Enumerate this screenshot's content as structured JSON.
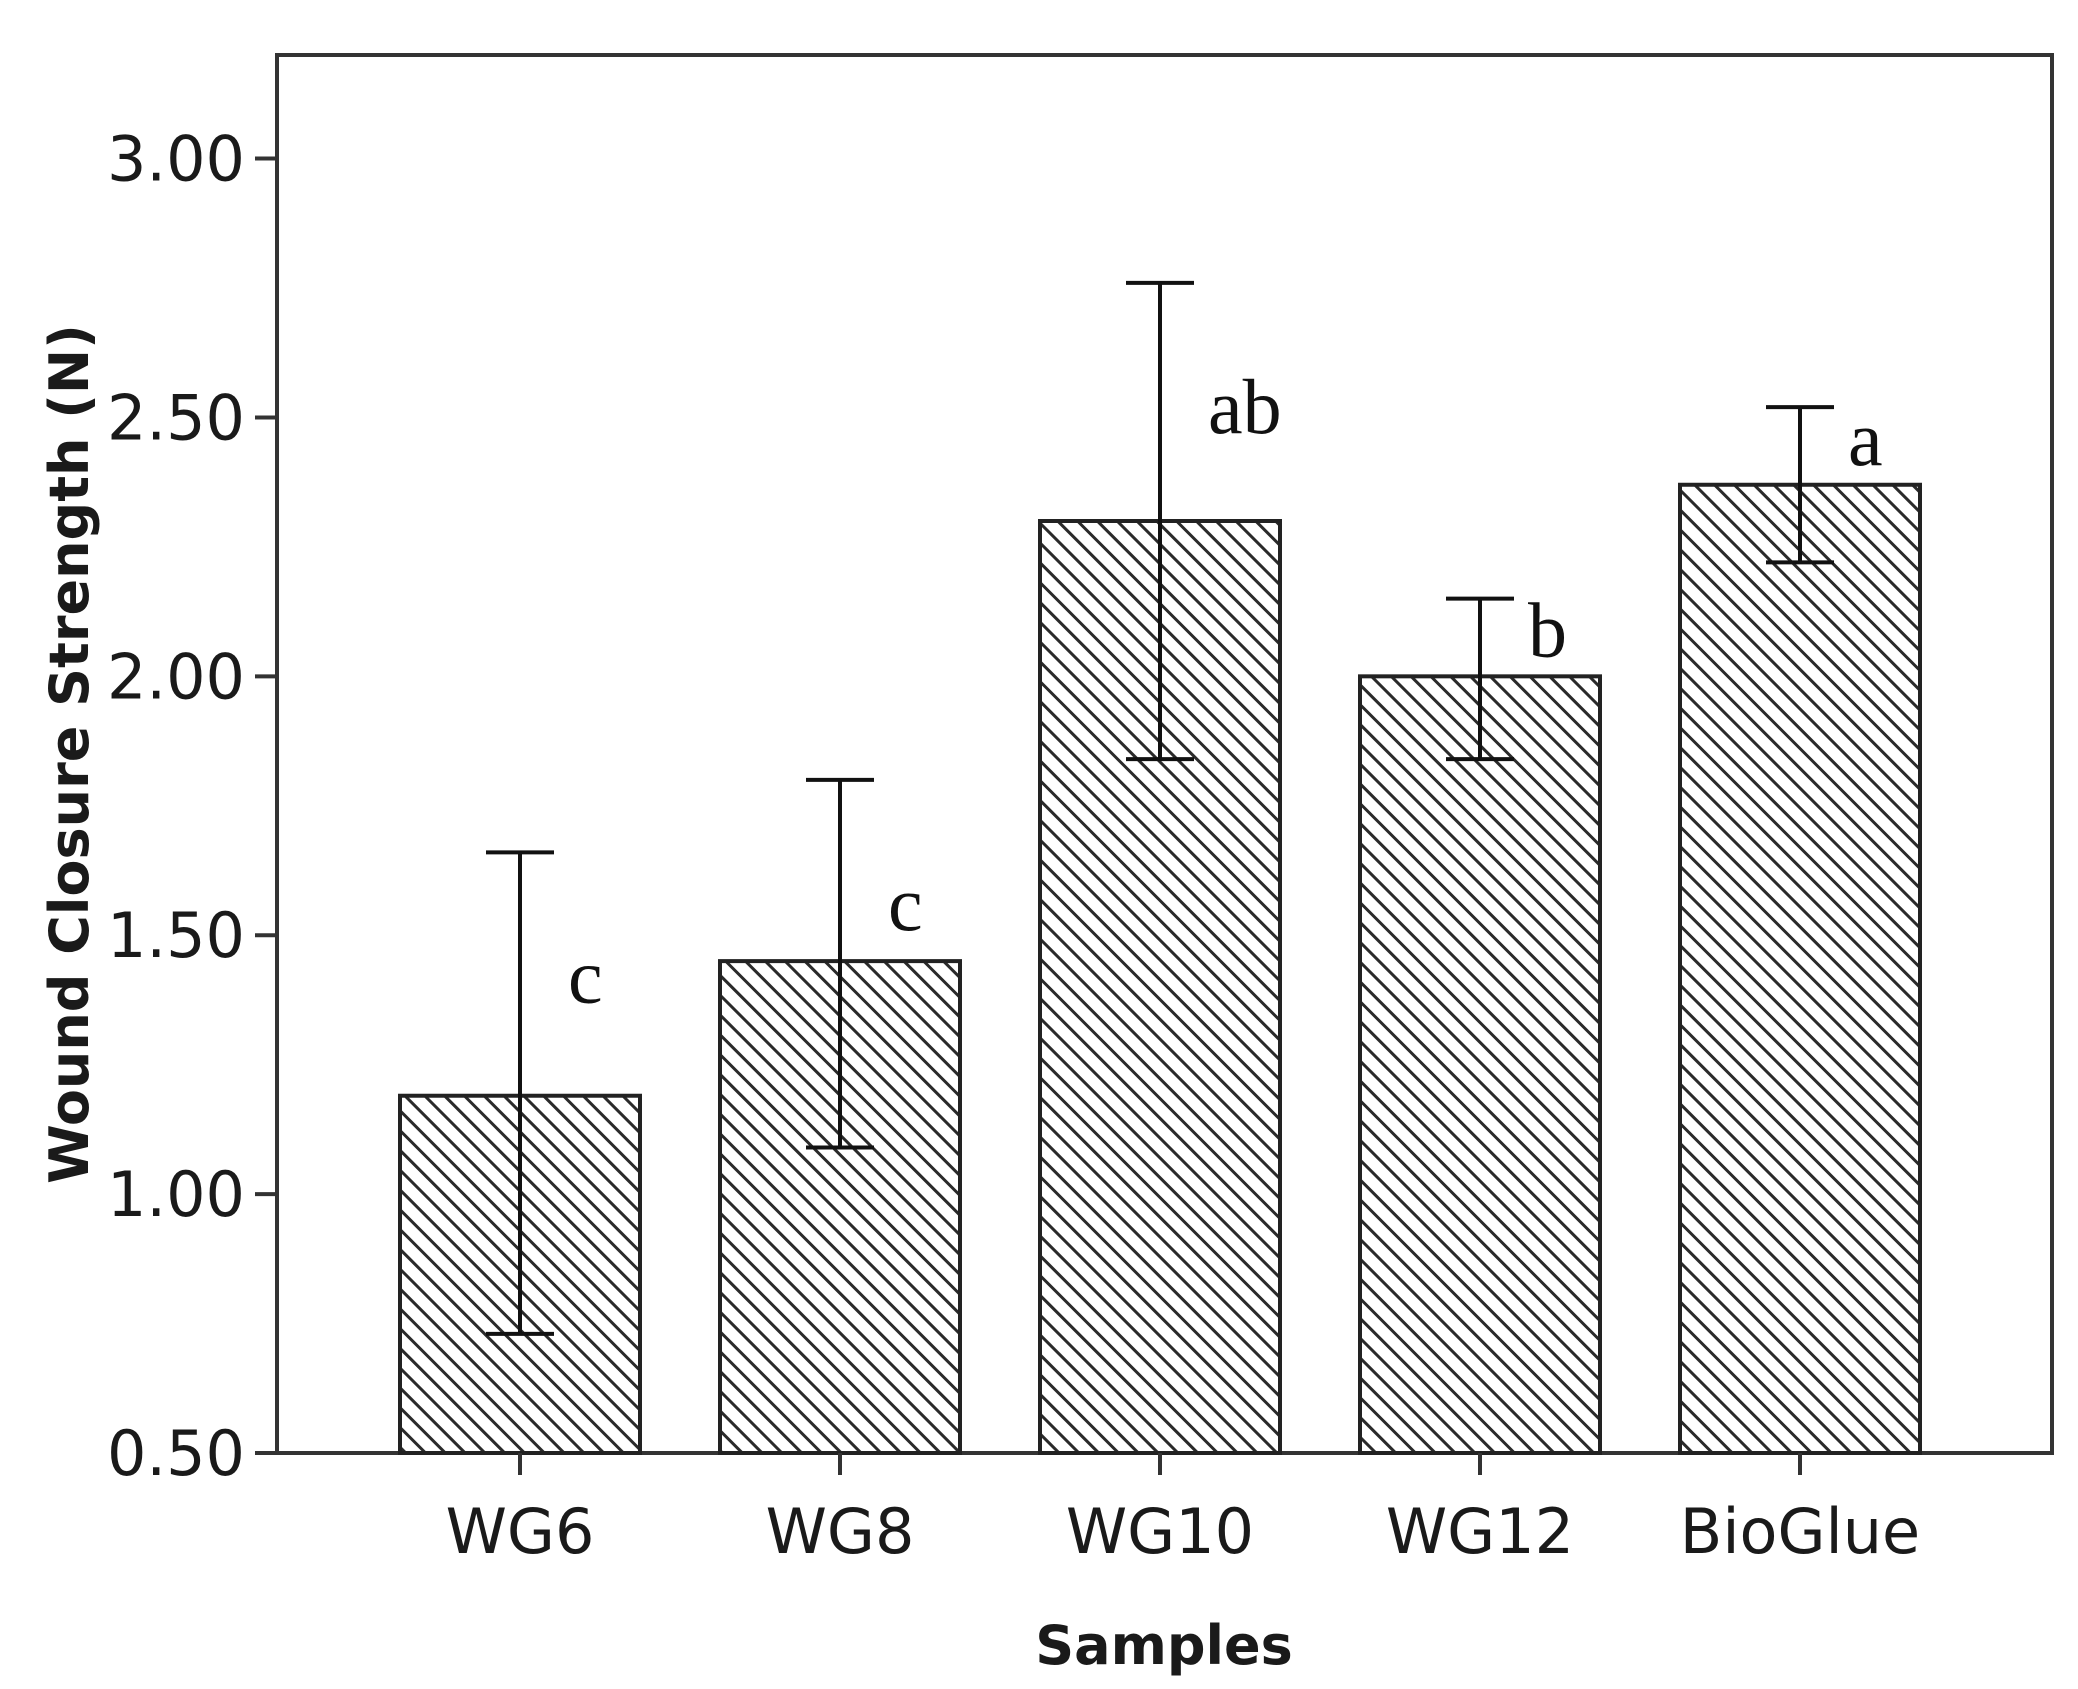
{
  "chart_data": {
    "type": "bar",
    "title": "",
    "xlabel": "Samples",
    "ylabel": "Wound Closure Strength (N)",
    "categories": [
      "WG6",
      "WG8",
      "WG10",
      "WG12",
      "BioGlue"
    ],
    "values": [
      1.19,
      1.45,
      2.3,
      2.0,
      2.37
    ],
    "error_low": [
      0.73,
      1.09,
      1.84,
      1.84,
      2.22
    ],
    "error_high": [
      1.66,
      1.8,
      2.76,
      2.15,
      2.52
    ],
    "significance": [
      "c",
      "c",
      "ab",
      "b",
      "a"
    ],
    "ylim": [
      0.5,
      3.2
    ],
    "yticks": [
      0.5,
      1.0,
      1.5,
      2.0,
      2.5,
      3.0
    ],
    "ytick_labels": [
      "0.50",
      "1.00",
      "1.50",
      "2.00",
      "2.50",
      "3.00"
    ],
    "grid": false,
    "bar_fill": "hatched"
  },
  "colors": {
    "axis": "#333333",
    "bar_stroke": "#222222",
    "hatch": "#2a2a2a",
    "background": "#ffffff"
  }
}
